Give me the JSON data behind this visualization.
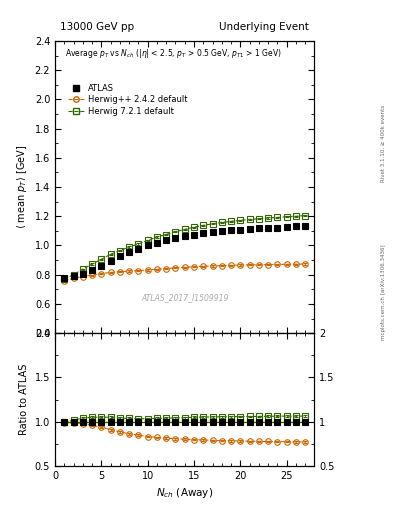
{
  "title_left": "13000 GeV pp",
  "title_right": "Underlying Event",
  "xlabel": "N_{ch} (Away)",
  "ylabel_main": "<mean p_T> [GeV]",
  "ylabel_ratio": "Ratio to ATLAS",
  "annotation": "ATLAS_2017_I1509919",
  "right_label_top": "Rivet 3.1.10, ≥ 400k events",
  "right_label_bottom": "mcplots.cern.ch [arXiv:1306.3436]",
  "legend_subtitle": "Average p_T vs N_ch (|eta| < 2.5, p_T > 0.5 GeV, p_{T1} > 1 GeV)",
  "xlim": [
    0,
    28
  ],
  "ylim_main": [
    0.4,
    2.4
  ],
  "ylim_ratio": [
    0.5,
    2.0
  ],
  "yticks_main": [
    0.4,
    0.6,
    0.8,
    1.0,
    1.2,
    1.4,
    1.6,
    1.8,
    2.0,
    2.2,
    2.4
  ],
  "yticks_ratio": [
    0.5,
    1.0,
    1.5,
    2.0
  ],
  "xticks": [
    0,
    5,
    10,
    15,
    20,
    25
  ],
  "atlas_x": [
    1,
    2,
    3,
    4,
    5,
    6,
    7,
    8,
    9,
    10,
    11,
    12,
    13,
    14,
    15,
    16,
    17,
    18,
    19,
    20,
    21,
    22,
    23,
    24,
    25,
    26,
    27
  ],
  "atlas_y": [
    0.775,
    0.788,
    0.805,
    0.832,
    0.862,
    0.895,
    0.928,
    0.955,
    0.978,
    1.0,
    1.02,
    1.035,
    1.05,
    1.062,
    1.072,
    1.082,
    1.09,
    1.097,
    1.103,
    1.108,
    1.113,
    1.117,
    1.12,
    1.123,
    1.126,
    1.13,
    1.133
  ],
  "herwig_x": [
    1,
    2,
    3,
    4,
    5,
    6,
    7,
    8,
    9,
    10,
    11,
    12,
    13,
    14,
    15,
    16,
    17,
    18,
    19,
    20,
    21,
    22,
    23,
    24,
    25,
    26,
    27
  ],
  "herwig_y": [
    0.76,
    0.775,
    0.787,
    0.797,
    0.808,
    0.815,
    0.82,
    0.825,
    0.828,
    0.832,
    0.838,
    0.842,
    0.847,
    0.851,
    0.855,
    0.858,
    0.86,
    0.862,
    0.864,
    0.866,
    0.867,
    0.868,
    0.869,
    0.87,
    0.871,
    0.872,
    0.873
  ],
  "herwig7_x": [
    1,
    2,
    3,
    4,
    5,
    6,
    7,
    8,
    9,
    10,
    11,
    12,
    13,
    14,
    15,
    16,
    17,
    18,
    19,
    20,
    21,
    22,
    23,
    24,
    25,
    26,
    27
  ],
  "herwig7_y": [
    0.77,
    0.8,
    0.838,
    0.873,
    0.905,
    0.94,
    0.965,
    0.99,
    1.01,
    1.035,
    1.058,
    1.075,
    1.095,
    1.11,
    1.125,
    1.138,
    1.148,
    1.158,
    1.165,
    1.172,
    1.178,
    1.183,
    1.188,
    1.192,
    1.196,
    1.2,
    1.205
  ],
  "atlas_color": "#000000",
  "herwig_color": "#cc6600",
  "herwig7_color": "#336600",
  "bg_color": "#ffffff",
  "atlas_markersize": 4,
  "herwig_markersize": 4,
  "herwig7_markersize": 4
}
